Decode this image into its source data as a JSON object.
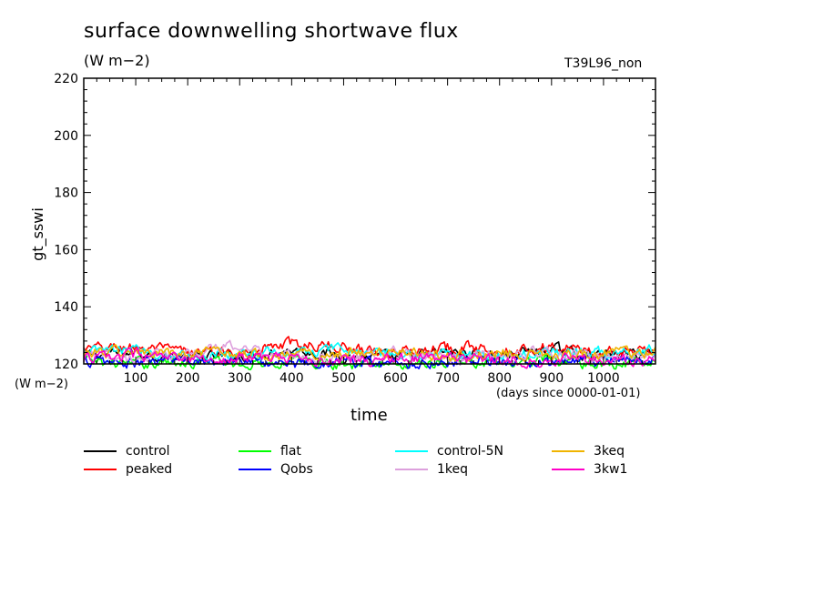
{
  "header": {
    "title": "surface downwelling shortwave flux",
    "units": "(W m−2)",
    "run_id": "T39L96_non"
  },
  "axes": {
    "ylabel": "gt_sswi",
    "yunit": "(W m−2)",
    "xlabel": "time",
    "xunit": "(days since 0000-01-01)"
  },
  "chart_data": {
    "type": "line",
    "title": "surface downwelling shortwave flux",
    "ylabel": "gt_sswi",
    "xlabel": "time",
    "ylim": [
      120,
      220
    ],
    "xlim": [
      0,
      1100
    ],
    "yticks": [
      120,
      140,
      160,
      180,
      200,
      220
    ],
    "xticks": [
      100,
      200,
      300,
      400,
      500,
      600,
      700,
      800,
      900,
      1000
    ],
    "xtick_labels": [
      "100",
      "200",
      "300",
      "400",
      "500",
      "600",
      "700",
      "800",
      "900",
      "1000"
    ],
    "x": [
      0,
      100,
      200,
      300,
      400,
      500,
      600,
      700,
      800,
      900,
      1000,
      1100
    ],
    "series": [
      {
        "name": "control",
        "color": "#000000",
        "values": [
          123,
          124,
          122,
          123,
          125,
          123,
          122,
          124,
          123,
          125,
          123,
          124
        ]
      },
      {
        "name": "peaked",
        "color": "#ff0000",
        "values": [
          125,
          126,
          124,
          124,
          127,
          126,
          124,
          126,
          125,
          126,
          124,
          125
        ]
      },
      {
        "name": "flat",
        "color": "#00ff00",
        "values": [
          121,
          120,
          121,
          120,
          121,
          120,
          120,
          121,
          120,
          121,
          120,
          121
        ]
      },
      {
        "name": "Qobs",
        "color": "#0000ff",
        "values": [
          121,
          120,
          122,
          121,
          120,
          121,
          120,
          121,
          121,
          120,
          121,
          121
        ]
      },
      {
        "name": "control-5N",
        "color": "#00ffff",
        "values": [
          124,
          125,
          123,
          124,
          124,
          125,
          123,
          124,
          123,
          124,
          124,
          125
        ]
      },
      {
        "name": "1keq",
        "color": "#dda0dd",
        "values": [
          123,
          122,
          124,
          126,
          123,
          122,
          124,
          122,
          123,
          124,
          122,
          123
        ]
      },
      {
        "name": "3keq",
        "color": "#f0b400",
        "values": [
          124,
          124,
          123,
          124,
          123,
          124,
          124,
          123,
          124,
          123,
          124,
          124
        ]
      },
      {
        "name": "3kw1",
        "color": "#ff00c8",
        "values": [
          122,
          123,
          121,
          122,
          122,
          121,
          122,
          122,
          121,
          122,
          121,
          122
        ]
      }
    ]
  }
}
